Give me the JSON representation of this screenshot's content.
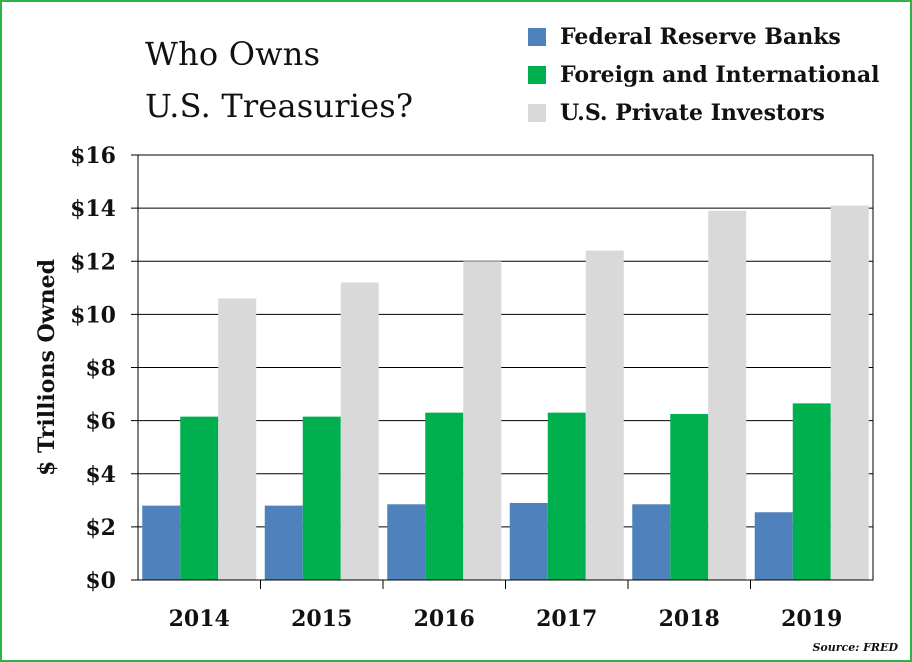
{
  "chart_data": {
    "type": "bar",
    "title_line1": "Who Owns",
    "title_line2": "U.S. Treasuries?",
    "ylabel": "$ Trillions Owned",
    "categories": [
      "2014",
      "2015",
      "2016",
      "2017",
      "2018",
      "2019"
    ],
    "ylim": [
      0,
      16
    ],
    "yticks": [
      {
        "value": 0,
        "label": "$0"
      },
      {
        "value": 2,
        "label": "$2"
      },
      {
        "value": 4,
        "label": "$4"
      },
      {
        "value": 6,
        "label": "$6"
      },
      {
        "value": 8,
        "label": "$8"
      },
      {
        "value": 10,
        "label": "$10"
      },
      {
        "value": 12,
        "label": "$12"
      },
      {
        "value": 14,
        "label": "$14"
      },
      {
        "value": 16,
        "label": "$16"
      }
    ],
    "grid": true,
    "legend_position": "top-right",
    "series": [
      {
        "name": "Federal Reserve Banks",
        "color": "#4f81bd",
        "values": [
          2.8,
          2.8,
          2.85,
          2.9,
          2.85,
          2.55
        ]
      },
      {
        "name": "Foreign and International",
        "color": "#00b04f",
        "values": [
          6.15,
          6.15,
          6.3,
          6.3,
          6.25,
          6.65
        ]
      },
      {
        "name": "U.S. Private Investors",
        "color": "#d9d9d9",
        "values": [
          10.6,
          11.2,
          12.0,
          12.4,
          13.9,
          14.1
        ]
      }
    ],
    "source": "Source: FRED"
  }
}
